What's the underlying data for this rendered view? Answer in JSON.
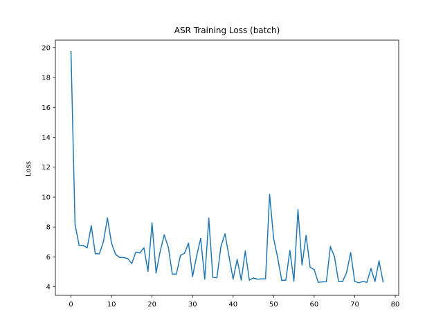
{
  "chart_data": {
    "type": "line",
    "title": "ASR Training Loss (batch)",
    "xlabel": "",
    "ylabel": "Loss",
    "xlim": [
      -3.85,
      80.85
    ],
    "ylim": [
      3.43,
      20.5
    ],
    "xticks": [
      0,
      10,
      20,
      30,
      40,
      50,
      60,
      70,
      80
    ],
    "yticks": [
      4,
      6,
      8,
      10,
      12,
      14,
      16,
      18,
      20
    ],
    "grid": false,
    "legend": "none",
    "series": [
      {
        "color": "#1f77b4",
        "x": [
          0,
          1,
          2,
          3,
          4,
          5,
          6,
          7,
          8,
          9,
          10,
          11,
          12,
          13,
          14,
          15,
          16,
          17,
          18,
          19,
          20,
          21,
          22,
          23,
          24,
          25,
          26,
          27,
          28,
          29,
          30,
          31,
          32,
          33,
          34,
          35,
          36,
          37,
          38,
          39,
          40,
          41,
          42,
          43,
          44,
          45,
          46,
          47,
          48,
          49,
          50,
          51,
          52,
          53,
          54,
          55,
          56,
          57,
          58,
          59,
          60,
          61,
          62,
          63,
          64,
          65,
          66,
          67,
          68,
          69,
          70,
          71,
          72,
          73,
          74,
          75,
          76,
          77
        ],
        "values": [
          19.72,
          8.17,
          6.78,
          6.77,
          6.61,
          8.09,
          6.21,
          6.21,
          7.01,
          8.61,
          6.91,
          6.17,
          5.97,
          5.95,
          5.89,
          5.56,
          6.32,
          6.27,
          6.61,
          5.04,
          8.27,
          4.93,
          6.36,
          7.47,
          6.66,
          4.85,
          4.85,
          6.1,
          6.25,
          6.92,
          4.69,
          6.07,
          7.24,
          4.52,
          8.59,
          4.63,
          4.61,
          6.71,
          7.54,
          6.01,
          4.52,
          5.83,
          4.45,
          6.39,
          4.45,
          4.59,
          4.51,
          4.53,
          4.54,
          10.19,
          7.23,
          5.93,
          4.43,
          4.45,
          6.42,
          4.38,
          9.16,
          5.47,
          7.43,
          5.31,
          5.15,
          4.3,
          4.33,
          4.34,
          6.69,
          6.03,
          4.37,
          4.35,
          4.96,
          6.29,
          4.36,
          4.27,
          4.36,
          4.3,
          5.22,
          4.36,
          5.73,
          4.33
        ]
      }
    ]
  }
}
